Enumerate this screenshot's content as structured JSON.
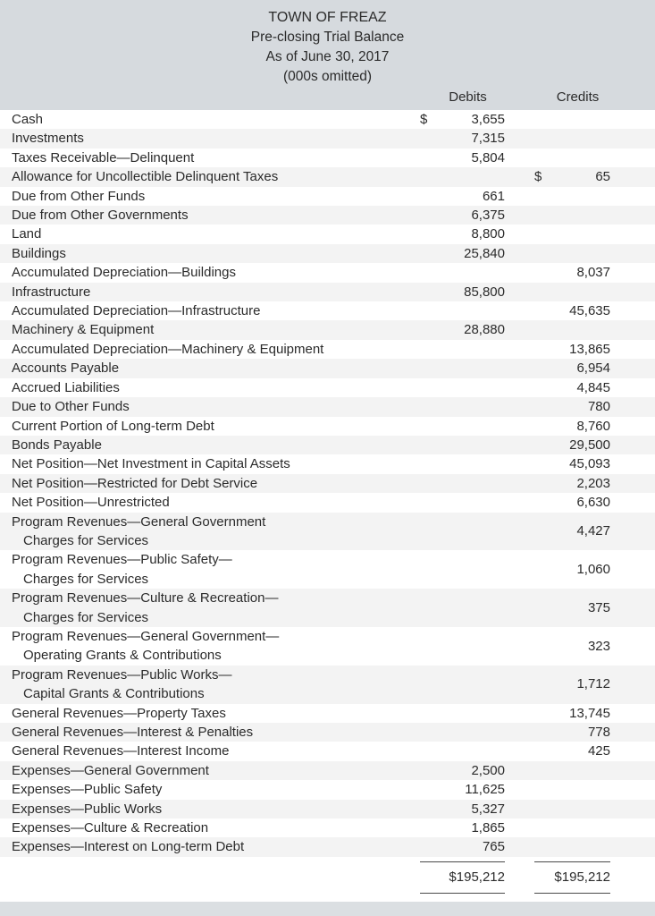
{
  "header": {
    "title": "TOWN OF FREAZ",
    "subtitle": "Pre-closing Trial Balance",
    "date_line": "As of June 30, 2017",
    "units_line": "(000s omitted)",
    "col_debits": "Debits",
    "col_credits": "Credits"
  },
  "rows": [
    {
      "account": "Cash",
      "debit_sign": "$",
      "debit": "3,655"
    },
    {
      "account": "Investments",
      "debit": "7,315"
    },
    {
      "account": "Taxes Receivable—Delinquent",
      "debit": "5,804"
    },
    {
      "account": "Allowance for Uncollectible Delinquent Taxes",
      "credit_sign": "$",
      "credit": "65"
    },
    {
      "account": "Due from Other Funds",
      "debit": "661"
    },
    {
      "account": "Due from Other Governments",
      "debit": "6,375"
    },
    {
      "account": "Land",
      "debit": "8,800"
    },
    {
      "account": "Buildings",
      "debit": "25,840"
    },
    {
      "account": "Accumulated Depreciation—Buildings",
      "credit": "8,037"
    },
    {
      "account": "Infrastructure",
      "debit": "85,800"
    },
    {
      "account": "Accumulated Depreciation—Infrastructure",
      "credit": "45,635"
    },
    {
      "account": "Machinery & Equipment",
      "debit": "28,880"
    },
    {
      "account": "Accumulated Depreciation—Machinery & Equipment",
      "credit": "13,865"
    },
    {
      "account": "Accounts Payable",
      "credit": "6,954"
    },
    {
      "account": "Accrued Liabilities",
      "credit": "4,845"
    },
    {
      "account": "Due to Other Funds",
      "credit": "780"
    },
    {
      "account": "Current Portion of Long-term Debt",
      "credit": "8,760"
    },
    {
      "account": "Bonds Payable",
      "credit": "29,500"
    },
    {
      "account": "Net Position—Net Investment in Capital Assets",
      "credit": "45,093"
    },
    {
      "account": "Net Position—Restricted for Debt Service",
      "credit": "2,203"
    },
    {
      "account": "Net Position—Unrestricted",
      "credit": "6,630"
    },
    {
      "account": "Program Revenues—General Government",
      "account2": "Charges for Services",
      "credit": "4,427"
    },
    {
      "account": "Program Revenues—Public Safety—",
      "account2": "Charges for Services",
      "credit": "1,060"
    },
    {
      "account": "Program Revenues—Culture & Recreation—",
      "account2": "Charges for Services",
      "credit": "375"
    },
    {
      "account": "Program Revenues—General Government—",
      "account2": "Operating Grants & Contributions",
      "credit": "323"
    },
    {
      "account": "Program Revenues—Public Works—",
      "account2": "Capital Grants & Contributions",
      "credit": "1,712"
    },
    {
      "account": "General Revenues—Property Taxes",
      "credit": "13,745"
    },
    {
      "account": "General Revenues—Interest & Penalties",
      "credit": "778"
    },
    {
      "account": "General Revenues—Interest Income",
      "credit": "425"
    },
    {
      "account": "Expenses—General Government",
      "debit": "2,500"
    },
    {
      "account": "Expenses—Public Safety",
      "debit": "11,625"
    },
    {
      "account": "Expenses—Public Works",
      "debit": "5,327"
    },
    {
      "account": "Expenses—Culture & Recreation",
      "debit": "1,865"
    },
    {
      "account": "Expenses—Interest on Long-term Debt",
      "debit": "765"
    }
  ],
  "totals": {
    "debits": "$195,212",
    "credits": "$195,212"
  },
  "colors": {
    "header_band": "#d6dade",
    "footer_band": "#dbdfe2",
    "row_stripe": "#f3f3f3",
    "text": "#2b2b2b"
  }
}
